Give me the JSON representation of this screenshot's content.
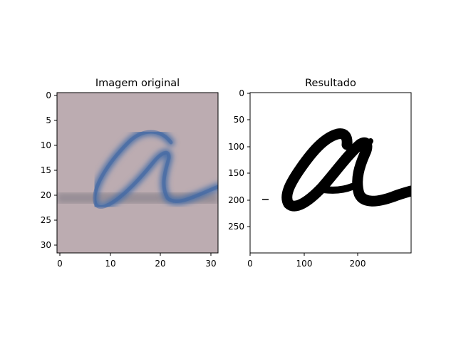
{
  "left_panel": {
    "title": "Imagem original",
    "y_ticks": [
      "0",
      "5",
      "10",
      "15",
      "20",
      "25",
      "30"
    ],
    "x_ticks": [
      "0",
      "10",
      "20",
      "30"
    ],
    "colors": {
      "background": "#b7a6ad",
      "stroke": "#4a6fa8",
      "line": "#8d8790"
    }
  },
  "right_panel": {
    "title": "Resultado",
    "y_ticks": [
      "0",
      "50",
      "100",
      "150",
      "200",
      "250"
    ],
    "x_ticks": [
      "0",
      "100",
      "200"
    ],
    "colors": {
      "background": "#ffffff",
      "ink": "#000000"
    }
  }
}
